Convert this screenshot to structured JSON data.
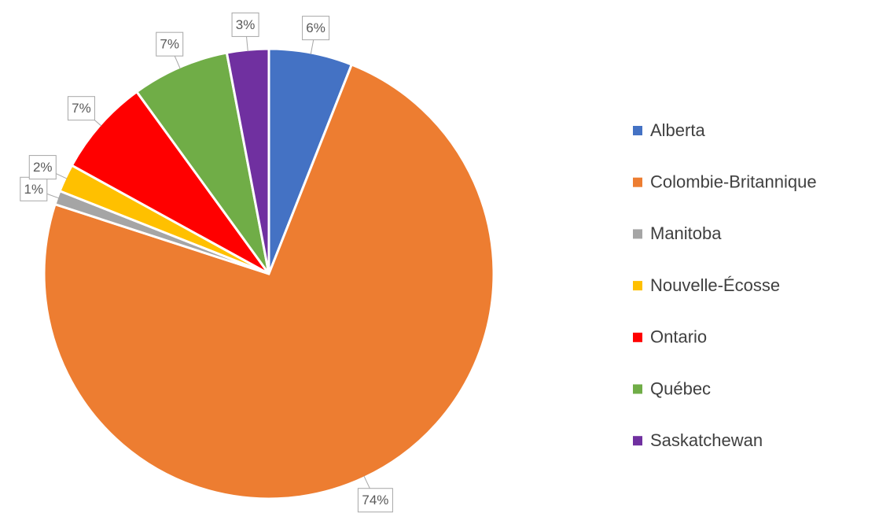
{
  "chart_data": {
    "type": "pie",
    "categories": [
      "Alberta",
      "Colombie-Britannique",
      "Manitoba",
      "Nouvelle-Écosse",
      "Ontario",
      "Québec",
      "Saskatchewan"
    ],
    "values": [
      6,
      74,
      1,
      2,
      7,
      7,
      3
    ],
    "value_labels": [
      "6%",
      "74%",
      "1%",
      "2%",
      "7%",
      "7%",
      "3%"
    ],
    "colors": [
      "#4472c4",
      "#ed7d31",
      "#a5a5a5",
      "#ffc000",
      "#ff0000",
      "#70ad47",
      "#7030a0"
    ],
    "legend": "right"
  }
}
